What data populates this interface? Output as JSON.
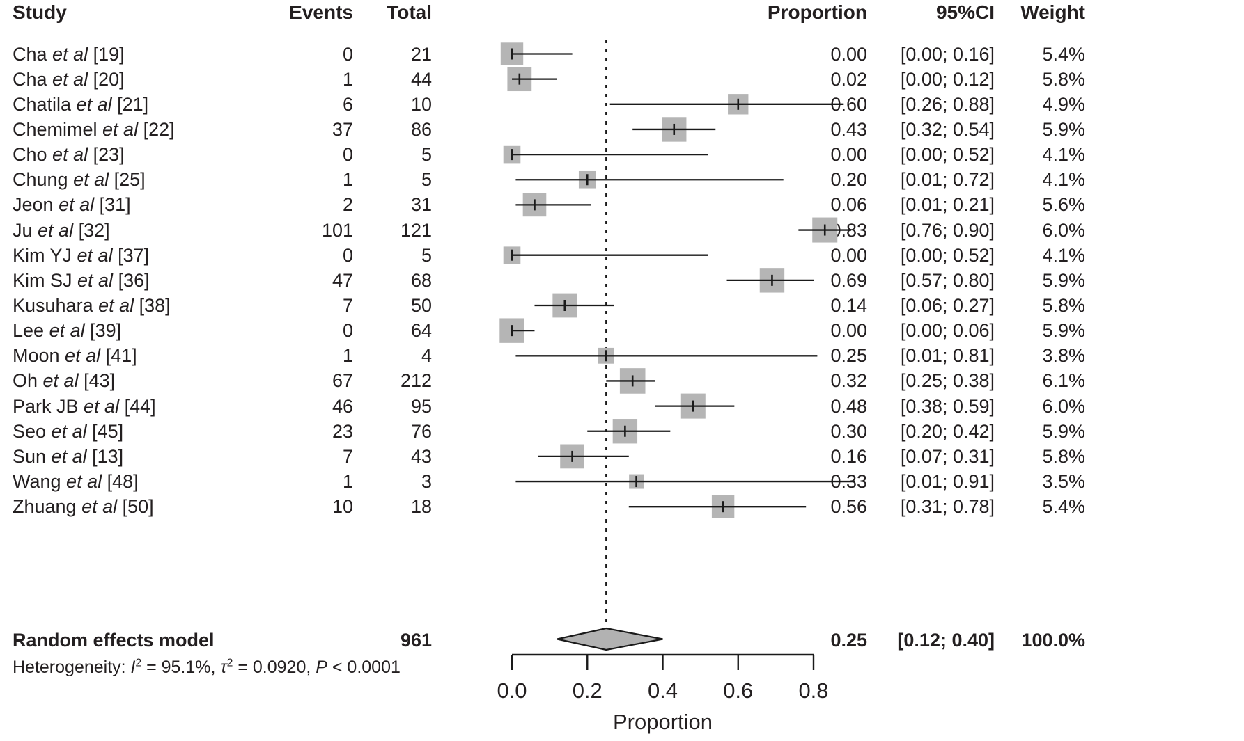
{
  "header": {
    "study": "Study",
    "events": "Events",
    "total": "Total",
    "proportion": "Proportion",
    "ci": "95%CI",
    "weight": "Weight"
  },
  "summary": {
    "label": "Random effects model",
    "total": "961",
    "proportion_label": "0.25",
    "ci_label": "[0.12; 0.40]",
    "weight_label": "100.0%"
  },
  "heterogeneity": {
    "prefix": "Heterogeneity: ",
    "i_sym": "I",
    "i_sup": "2",
    "i_val": " = 95.1%, ",
    "tau_sym": "τ",
    "tau_sup": "2",
    "tau_val": " = 0.0920, ",
    "p_sym": "P",
    "p_val": " < 0.0001"
  },
  "colors": {
    "text": "#231f20",
    "line": "#1a1a1a",
    "square": "#b5b5b5",
    "diamond": "#b2b2b2",
    "background": "#ffffff"
  },
  "chart_data": {
    "type": "forest",
    "xlabel": "Proportion",
    "xlim": [
      0.0,
      0.91
    ],
    "x_ticks": [
      0.0,
      0.2,
      0.4,
      0.6,
      0.8
    ],
    "x_tick_labels": [
      "0.0",
      "0.2",
      "0.4",
      "0.6",
      "0.8"
    ],
    "ref_line": 0.25,
    "grid": false,
    "studies": [
      {
        "name": "Cha",
        "etal": "et al",
        "ref": "[19]",
        "events": "0",
        "total": "21",
        "proportion": 0.0,
        "ci": [
          0.0,
          0.16
        ],
        "proportion_label": "0.00",
        "ci_label": "[0.00; 0.16]",
        "weight_pct": 5.4,
        "weight_label": "5.4%"
      },
      {
        "name": "Cha",
        "etal": "et al",
        "ref": "[20]",
        "events": "1",
        "total": "44",
        "proportion": 0.02,
        "ci": [
          0.0,
          0.12
        ],
        "proportion_label": "0.02",
        "ci_label": "[0.00; 0.12]",
        "weight_pct": 5.8,
        "weight_label": "5.8%"
      },
      {
        "name": "Chatila",
        "etal": "et al",
        "ref": "[21]",
        "events": "6",
        "total": "10",
        "proportion": 0.6,
        "ci": [
          0.26,
          0.88
        ],
        "proportion_label": "0.60",
        "ci_label": "[0.26; 0.88]",
        "weight_pct": 4.9,
        "weight_label": "4.9%"
      },
      {
        "name": "Chemimel",
        "etal": "et al",
        "ref": "[22]",
        "events": "37",
        "total": "86",
        "proportion": 0.43,
        "ci": [
          0.32,
          0.54
        ],
        "proportion_label": "0.43",
        "ci_label": "[0.32; 0.54]",
        "weight_pct": 5.9,
        "weight_label": "5.9%"
      },
      {
        "name": "Cho",
        "etal": "et al",
        "ref": "[23]",
        "events": "0",
        "total": "5",
        "proportion": 0.0,
        "ci": [
          0.0,
          0.52
        ],
        "proportion_label": "0.00",
        "ci_label": "[0.00; 0.52]",
        "weight_pct": 4.1,
        "weight_label": "4.1%"
      },
      {
        "name": "Chung",
        "etal": "et al",
        "ref": "[25]",
        "events": "1",
        "total": "5",
        "proportion": 0.2,
        "ci": [
          0.01,
          0.72
        ],
        "proportion_label": "0.20",
        "ci_label": "[0.01; 0.72]",
        "weight_pct": 4.1,
        "weight_label": "4.1%"
      },
      {
        "name": "Jeon",
        "etal": "et al",
        "ref": "[31]",
        "events": "2",
        "total": "31",
        "proportion": 0.06,
        "ci": [
          0.01,
          0.21
        ],
        "proportion_label": "0.06",
        "ci_label": "[0.01; 0.21]",
        "weight_pct": 5.6,
        "weight_label": "5.6%"
      },
      {
        "name": "Ju",
        "etal": "et al",
        "ref": "[32]",
        "events": "101",
        "total": "121",
        "proportion": 0.83,
        "ci": [
          0.76,
          0.9
        ],
        "proportion_label": "0.83",
        "ci_label": "[0.76; 0.90]",
        "weight_pct": 6.0,
        "weight_label": "6.0%"
      },
      {
        "name": "Kim YJ",
        "etal": "et al",
        "ref": "[37]",
        "events": "0",
        "total": "5",
        "proportion": 0.0,
        "ci": [
          0.0,
          0.52
        ],
        "proportion_label": "0.00",
        "ci_label": "[0.00; 0.52]",
        "weight_pct": 4.1,
        "weight_label": "4.1%"
      },
      {
        "name": "Kim SJ",
        "etal": "et al",
        "ref": "[36]",
        "events": "47",
        "total": "68",
        "proportion": 0.69,
        "ci": [
          0.57,
          0.8
        ],
        "proportion_label": "0.69",
        "ci_label": "[0.57; 0.80]",
        "weight_pct": 5.9,
        "weight_label": "5.9%"
      },
      {
        "name": "Kusuhara",
        "etal": "et al",
        "ref": "[38]",
        "events": "7",
        "total": "50",
        "proportion": 0.14,
        "ci": [
          0.06,
          0.27
        ],
        "proportion_label": "0.14",
        "ci_label": "[0.06; 0.27]",
        "weight_pct": 5.8,
        "weight_label": "5.8%"
      },
      {
        "name": "Lee",
        "etal": "et al",
        "ref": "[39]",
        "events": "0",
        "total": "64",
        "proportion": 0.0,
        "ci": [
          0.0,
          0.06
        ],
        "proportion_label": "0.00",
        "ci_label": "[0.00; 0.06]",
        "weight_pct": 5.9,
        "weight_label": "5.9%"
      },
      {
        "name": "Moon",
        "etal": "et al",
        "ref": "[41]",
        "events": "1",
        "total": "4",
        "proportion": 0.25,
        "ci": [
          0.01,
          0.81
        ],
        "proportion_label": "0.25",
        "ci_label": "[0.01; 0.81]",
        "weight_pct": 3.8,
        "weight_label": "3.8%"
      },
      {
        "name": "Oh",
        "etal": "et al",
        "ref": "[43]",
        "events": "67",
        "total": "212",
        "proportion": 0.32,
        "ci": [
          0.25,
          0.38
        ],
        "proportion_label": "0.32",
        "ci_label": "[0.25; 0.38]",
        "weight_pct": 6.1,
        "weight_label": "6.1%"
      },
      {
        "name": "Park JB",
        "etal": "et al",
        "ref": "[44]",
        "events": "46",
        "total": "95",
        "proportion": 0.48,
        "ci": [
          0.38,
          0.59
        ],
        "proportion_label": "0.48",
        "ci_label": "[0.38; 0.59]",
        "weight_pct": 6.0,
        "weight_label": "6.0%"
      },
      {
        "name": "Seo",
        "etal": "et al",
        "ref": "[45]",
        "events": "23",
        "total": "76",
        "proportion": 0.3,
        "ci": [
          0.2,
          0.42
        ],
        "proportion_label": "0.30",
        "ci_label": "[0.20; 0.42]",
        "weight_pct": 5.9,
        "weight_label": "5.9%"
      },
      {
        "name": "Sun",
        "etal": "et al",
        "ref": "[13]",
        "events": "7",
        "total": "43",
        "proportion": 0.16,
        "ci": [
          0.07,
          0.31
        ],
        "proportion_label": "0.16",
        "ci_label": "[0.07; 0.31]",
        "weight_pct": 5.8,
        "weight_label": "5.8%"
      },
      {
        "name": "Wang",
        "etal": "et al",
        "ref": "[48]",
        "events": "1",
        "total": "3",
        "proportion": 0.33,
        "ci": [
          0.01,
          0.91
        ],
        "proportion_label": "0.33",
        "ci_label": "[0.01; 0.91]",
        "weight_pct": 3.5,
        "weight_label": "3.5%"
      },
      {
        "name": "Zhuang",
        "etal": "et al",
        "ref": "[50]",
        "events": "10",
        "total": "18",
        "proportion": 0.56,
        "ci": [
          0.31,
          0.78
        ],
        "proportion_label": "0.56",
        "ci_label": "[0.31; 0.78]",
        "weight_pct": 5.4,
        "weight_label": "5.4%"
      }
    ],
    "pooled": {
      "label": "Random effects model",
      "total": 961,
      "proportion": 0.25,
      "ci": [
        0.12,
        0.4
      ],
      "weight_pct": 100.0
    },
    "heterogeneity_text": "Heterogeneity: I² = 95.1%, τ² = 0.0920, P < 0.0001"
  }
}
